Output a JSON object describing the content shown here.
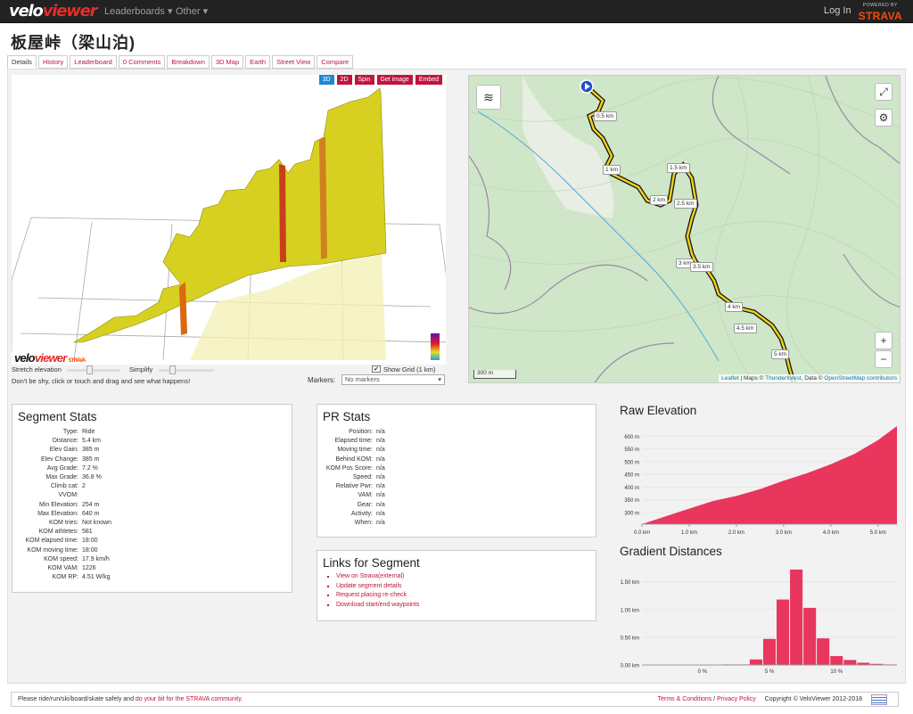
{
  "nav": {
    "logo_a": "velo",
    "logo_b": "viewer",
    "leaderboards": "Leaderboards ▾",
    "other": "Other ▾",
    "login": "Log In",
    "powered": "POWERED BY",
    "strava": "STRAVA"
  },
  "page_title": "板屋峠（梁山泊)",
  "tabs": [
    "Details",
    "History",
    "Leaderboard",
    "0 Comments",
    "Breakdown",
    "3D Map",
    "Earth",
    "Street View",
    "Compare"
  ],
  "view3d": {
    "buttons": [
      "3D",
      "2D",
      "Spin",
      "Get image",
      "Embed"
    ],
    "stretch": "Stretch elevation",
    "simplify": "Simplify",
    "show_grid": "Show Grid (1 km)",
    "hint": "Don't be shy, click or touch and drag and see what happens!",
    "markers_label": "Markers:",
    "markers_value": "No markers",
    "watermark_a": "velo",
    "watermark_b": "viewer",
    "watermark_strava": "STRAVA"
  },
  "map": {
    "scale": "300 m",
    "attribution_a": "Leaflet",
    "attribution_b": " | Maps © ",
    "attribution_c": "Thunderforest",
    "attribution_d": ", Data © ",
    "attribution_e": "OpenStreetMap contributors",
    "km_labels": [
      "0.5 km",
      "1 km",
      "1.5 km",
      "2 km",
      "2.5 km",
      "3 km",
      "3.5 km",
      "4 km",
      "4.5 km",
      "5 km"
    ]
  },
  "segment_stats": {
    "title": "Segment Stats",
    "rows": [
      [
        "Type:",
        "Ride"
      ],
      [
        "Distance:",
        "5.4 km"
      ],
      [
        "Elev Gain:",
        "385 m"
      ],
      [
        "Elev Change:",
        "385 m"
      ],
      [
        "Avg Grade:",
        "7.2 %"
      ],
      [
        "Max Grade:",
        "36.8 %"
      ],
      [
        "Climb cat:",
        "2"
      ],
      [
        "VVOM:",
        ""
      ],
      [
        "Min Elevation:",
        "254 m"
      ],
      [
        "Max Elevation:",
        "640 m"
      ],
      [
        "KOM tries:",
        "Not known"
      ],
      [
        "KOM athletes:",
        "581"
      ],
      [
        "KOM elapsed time:",
        "18:00"
      ],
      [
        "KOM moving time:",
        "18:00"
      ],
      [
        "KOM speed:",
        "17.9 km/h"
      ],
      [
        "KOM VAM:",
        "1226"
      ],
      [
        "KOM RP:",
        "4.51 W/kg"
      ]
    ]
  },
  "pr_stats": {
    "title": "PR Stats",
    "rows": [
      [
        "Position:",
        "n/a"
      ],
      [
        "Elapsed time:",
        "n/a"
      ],
      [
        "Moving time:",
        "n/a"
      ],
      [
        "Behind KOM:",
        "n/a"
      ],
      [
        "KOM Pos Score:",
        "n/a"
      ],
      [
        "Speed:",
        "n/a"
      ],
      [
        "Relative Pwr:",
        "n/a"
      ],
      [
        "VAM:",
        "n/a"
      ],
      [
        "Gear:",
        "n/a"
      ],
      [
        "Activity:",
        "n/a"
      ],
      [
        "When:",
        "n/a"
      ]
    ]
  },
  "links_box": {
    "title": "Links for Segment",
    "links": [
      "View on Strava(external)",
      "Update segment details",
      "Request placing re-check",
      "Download start/end waypoints"
    ]
  },
  "chart_data": [
    {
      "type": "area",
      "title": "Raw Elevation",
      "x": [
        0,
        0.5,
        1,
        1.5,
        2,
        2.5,
        3,
        3.5,
        4,
        4.5,
        5,
        5.4
      ],
      "y": [
        254,
        285,
        315,
        345,
        365,
        392,
        425,
        455,
        490,
        530,
        585,
        640
      ],
      "x_ticks": [
        "0.0 km",
        "1.0 km",
        "2.0 km",
        "3.0 km",
        "4.0 km",
        "5.0 km"
      ],
      "y_ticks": [
        "300 m",
        "350 m",
        "400 m",
        "450 m",
        "500 m",
        "550 m",
        "600 m"
      ],
      "xlim": [
        0,
        5.4
      ],
      "ylim": [
        254,
        640
      ],
      "color": "#e8365d"
    },
    {
      "type": "bar",
      "title": "Gradient Distances",
      "categories": [
        -4,
        -3,
        -2,
        -1,
        0,
        1,
        2,
        3,
        4,
        5,
        6,
        7,
        8,
        9,
        10,
        11,
        12,
        13,
        14
      ],
      "values": [
        0,
        0,
        0,
        0,
        0,
        0,
        0.01,
        0.01,
        0.1,
        0.47,
        1.18,
        1.72,
        1.03,
        0.48,
        0.16,
        0.09,
        0.04,
        0.02,
        0.01
      ],
      "x_ticks": [
        "0 %",
        "5 %",
        "10 %"
      ],
      "y_ticks": [
        "0.00 km",
        "0.50 km",
        "1.00 km",
        "1.50 km"
      ],
      "ylim": [
        0,
        1.8
      ],
      "color": "#e8365d"
    }
  ],
  "footer": {
    "left_a": "Please ride/run/ski/board/skate safely and ",
    "left_b": "do your bit for the STRAVA community.",
    "terms": "Terms & Conditions",
    "sep": " / ",
    "privacy": "Privacy Policy",
    "copyright": "Copyright © VeloViewer 2012-2018"
  }
}
